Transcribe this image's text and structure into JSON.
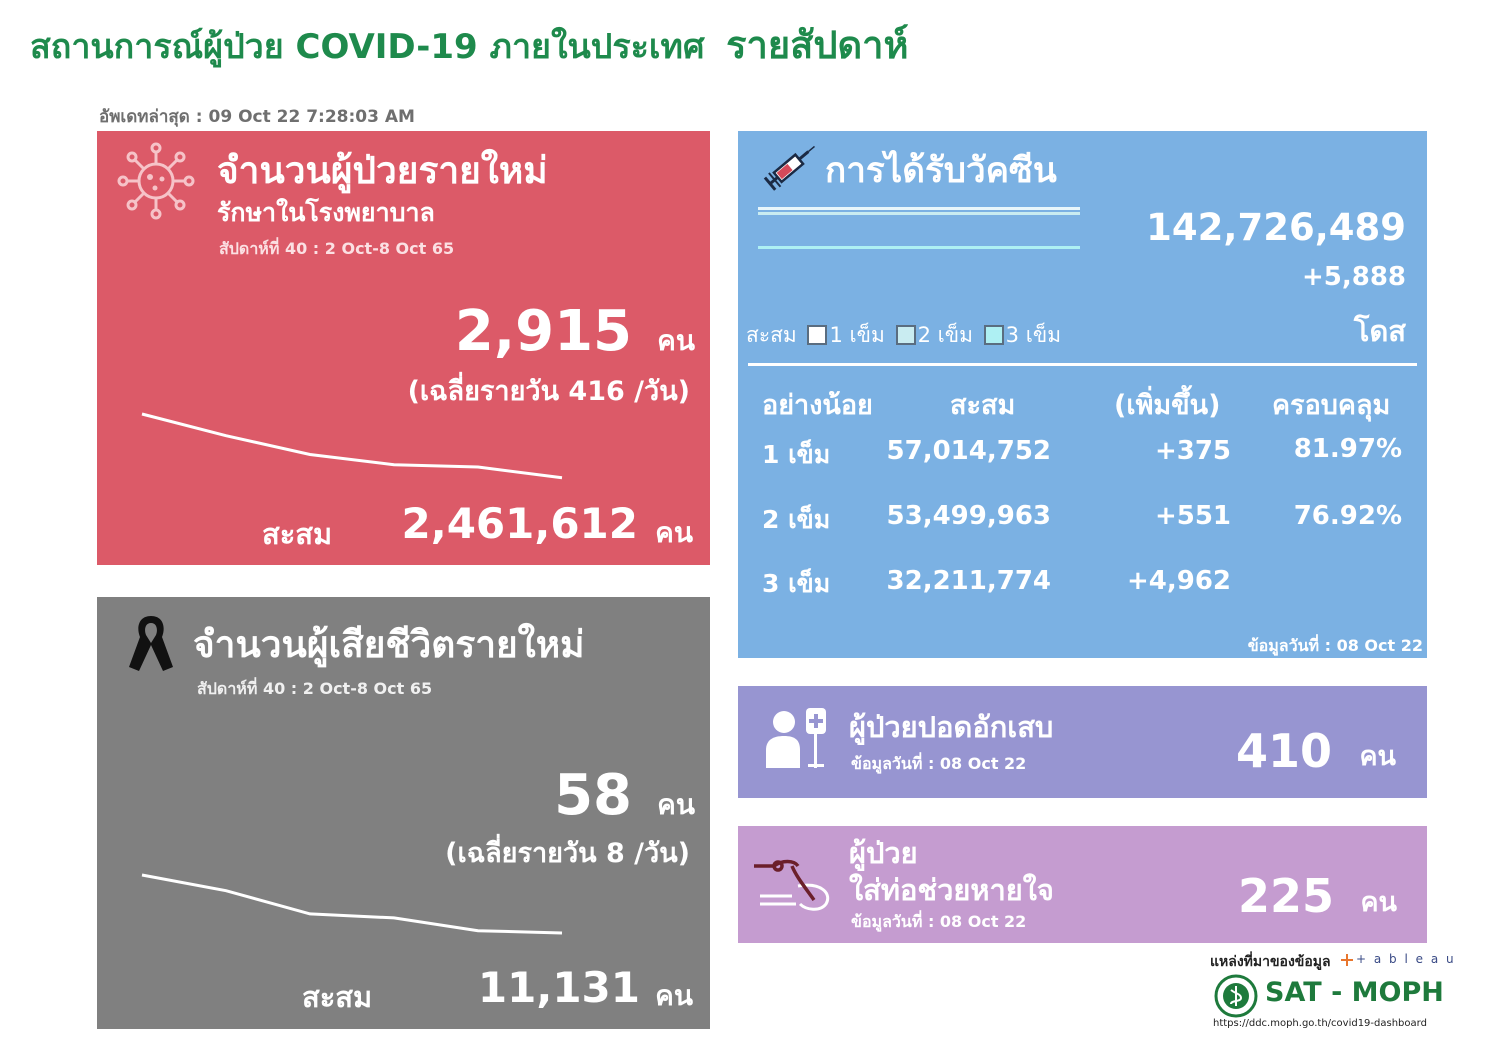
{
  "header": {
    "title_main": "สถานการณ์ผู้ป่วย COVID-19 ภายในประเทศ",
    "title_week": "รายสัปดาห์",
    "updated": "อัพเดทล่าสุด : 09 Oct 22 7:28:03 AM"
  },
  "new_cases": {
    "title": "จำนวนผู้ป่วยรายใหม่",
    "subtitle": "รักษาในโรงพยาบาล",
    "week": "สัปดาห์ที่ 40 : 2 Oct-8 Oct 65",
    "value": "2,915",
    "unit": "คน",
    "average": "(เฉลี่ยรายวัน 416 /วัน)",
    "cumulative_label": "สะสม",
    "cumulative": "2,461,612",
    "cumulative_unit": "คน",
    "trend": [
      0.0,
      0.38,
      0.71,
      0.89,
      0.93,
      1.12
    ],
    "icon": "virus-icon"
  },
  "deaths": {
    "title": "จำนวนผู้เสียชีวิตรายใหม่",
    "week": "สัปดาห์ที่  40 : 2 Oct-8 Oct 65",
    "value": "58",
    "unit": "คน",
    "average": "(เฉลี่ยรายวัน 8 /วัน)",
    "cumulative_label": "สะสม",
    "cumulative": "11,131",
    "cumulative_unit": "คน",
    "trend": [
      0.0,
      0.27,
      0.67,
      0.74,
      0.96,
      1.0
    ],
    "icon": "black-ribbon-icon"
  },
  "vaccine": {
    "title": "การได้รับวัคซีน",
    "total": "142,726,489",
    "increase": "+5,888",
    "unit": "โดส",
    "legend_label": "สะสม",
    "legend": [
      "1 เข็ม",
      "2 เข็ม",
      "3 เข็ม"
    ],
    "legend_colors": [
      "#ffffff",
      "#c9ecf1",
      "#aef0f3"
    ],
    "columns": [
      "อย่างน้อย",
      "สะสม",
      "(เพิ่มขึ้น)",
      "ครอบคลุม"
    ],
    "rows": [
      {
        "dose": "1 เข็ม",
        "cumulative": "57,014,752",
        "increase": "+375",
        "coverage": "81.97%"
      },
      {
        "dose": "2 เข็ม",
        "cumulative": "53,499,963",
        "increase": "+551",
        "coverage": "76.92%"
      },
      {
        "dose": "3 เข็ม",
        "cumulative": "32,211,774",
        "increase": "+4,962",
        "coverage": ""
      }
    ],
    "data_date": "ข้อมูลวันที่ : 08 Oct 22",
    "icon": "syringe-icon"
  },
  "pneumonia": {
    "title": "ผู้ป่วยปอดอักเสบ",
    "data_date": "ข้อมูลวันที่ : 08 Oct 22",
    "value": "410",
    "unit": "คน",
    "icon": "patient-iv-icon"
  },
  "ventilator": {
    "title_line1": "ผู้ป่วย",
    "title_line2": "ใส่ท่อช่วยหายใจ",
    "data_date": "ข้อมูลวันที่ : 08 Oct 22",
    "value": "225",
    "unit": "คน",
    "icon": "breathing-tube-icon"
  },
  "footer": {
    "source": "แหล่งที่มาของข้อมูล",
    "tableau": "+ a b l e a u",
    "org": "SAT - MOPH",
    "url": "https://ddc.moph.go.th/covid19-dashboard",
    "logo_icon": "moph-seal-icon"
  }
}
